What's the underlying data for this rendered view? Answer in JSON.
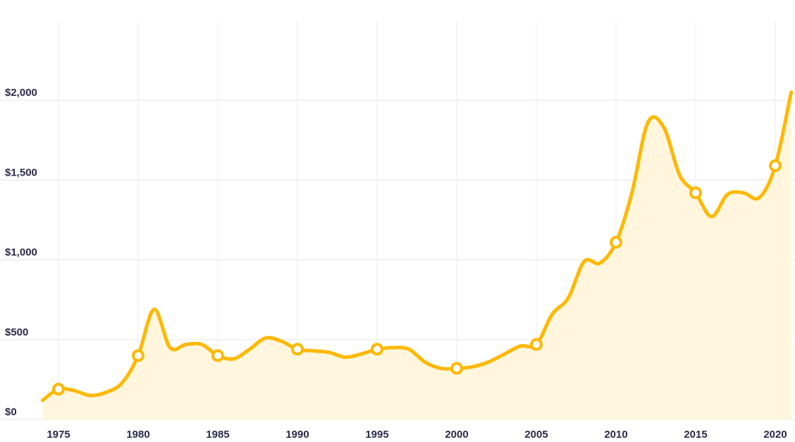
{
  "chart_data": {
    "type": "line",
    "title": "",
    "xlabel": "",
    "ylabel": "",
    "xlim": [
      1974,
      2021
    ],
    "ylim": [
      0,
      2400
    ],
    "x_ticks": [
      1975,
      1980,
      1985,
      1990,
      1995,
      2000,
      2005,
      2010,
      2015,
      2020
    ],
    "x_tick_labels": [
      "1975",
      "1980",
      "1985",
      "1990",
      "1995",
      "2000",
      "2005",
      "2010",
      "2015",
      "2020"
    ],
    "y_ticks": [
      0,
      500,
      1000,
      1500,
      2000
    ],
    "y_tick_labels": [
      "$0",
      "$500",
      "$1,000",
      "$1,500",
      "$2,000"
    ],
    "grid": true,
    "series": [
      {
        "x": [
          1974,
          1975,
          1976,
          1977,
          1978,
          1979,
          1980,
          1981,
          1982,
          1983,
          1984,
          1985,
          1986,
          1987,
          1988,
          1989,
          1990,
          1991,
          1992,
          1993,
          1994,
          1995,
          1996,
          1997,
          1998,
          1999,
          2000,
          2001,
          2002,
          2003,
          2004,
          2005,
          2006,
          2007,
          2008,
          2009,
          2010,
          2011,
          2012,
          2013,
          2014,
          2015,
          2016,
          2017,
          2018,
          2019,
          2020,
          2021
        ],
        "y": [
          120,
          190,
          180,
          150,
          170,
          230,
          400,
          690,
          450,
          470,
          470,
          400,
          380,
          440,
          510,
          490,
          440,
          430,
          420,
          390,
          410,
          440,
          450,
          440,
          360,
          320,
          320,
          330,
          360,
          410,
          460,
          470,
          660,
          760,
          990,
          980,
          1110,
          1420,
          1860,
          1830,
          1530,
          1420,
          1270,
          1410,
          1420,
          1390,
          1590,
          2050
        ],
        "markers_x": [
          1975,
          1980,
          1985,
          1990,
          1995,
          2000,
          2005,
          2010,
          2015,
          2020
        ]
      }
    ],
    "colors": {
      "line": "#ffb800",
      "fill": "#fff6dd",
      "marker_fill": "#ffffff",
      "grid": "#e9e9ec",
      "tick_text": "#2c2a4a"
    }
  }
}
